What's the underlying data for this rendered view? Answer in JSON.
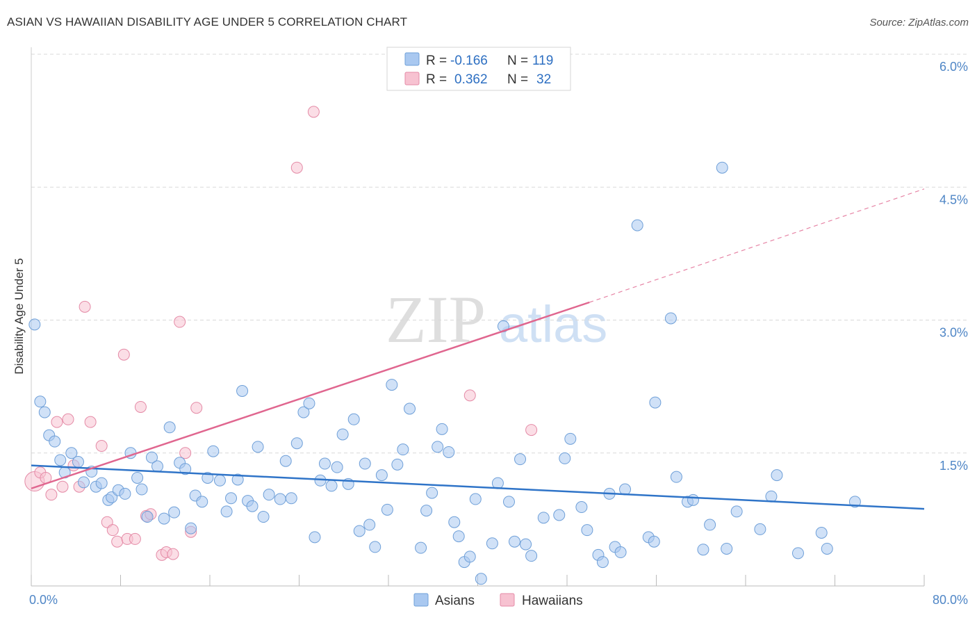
{
  "title": "ASIAN VS HAWAIIAN DISABILITY AGE UNDER 5 CORRELATION CHART",
  "source": "Source: ZipAtlas.com",
  "watermark": {
    "zip": "ZIP",
    "atlas": "atlas"
  },
  "legend_top": [
    {
      "r_label": "R =",
      "r_value": "-0.166",
      "n_label": "N =",
      "n_value": "119"
    },
    {
      "r_label": "R =",
      "r_value": "0.362",
      "n_label": "N =",
      "n_value": "32"
    }
  ],
  "colors": {
    "asian_fill": "#a9c8f0",
    "asian_stroke": "#6e9fd8",
    "asian_line": "#2f74c8",
    "hawaiian_fill": "#f7c2d1",
    "hawaiian_stroke": "#e48aa6",
    "hawaiian_line": "#e0668f",
    "grid": "#d9d9d9",
    "tick": "#4f86c6"
  },
  "chart_data": {
    "type": "scatter",
    "title": "ASIAN VS HAWAIIAN DISABILITY AGE UNDER 5 CORRELATION CHART",
    "xlabel": "",
    "ylabel": "Disability Age Under 5",
    "xlim": [
      0,
      80
    ],
    "ylim": [
      0,
      6.0
    ],
    "x_tick_labels": [
      "0.0%",
      "80.0%"
    ],
    "y_ticks": [
      1.5,
      3.0,
      4.5,
      6.0
    ],
    "y_tick_labels": [
      "1.5%",
      "3.0%",
      "4.5%",
      "6.0%"
    ],
    "grid": true,
    "legend": "bottom-center",
    "series": [
      {
        "name": "Asians",
        "r": -0.166,
        "n": 119,
        "trend": {
          "x": [
            0,
            80
          ],
          "y": [
            1.36,
            0.87
          ],
          "dashed_extension": false
        },
        "points": [
          [
            0.3,
            2.95
          ],
          [
            0.8,
            2.08
          ],
          [
            1.2,
            1.96
          ],
          [
            1.6,
            1.7
          ],
          [
            2.1,
            1.63
          ],
          [
            2.6,
            1.42
          ],
          [
            3.0,
            1.28
          ],
          [
            3.6,
            1.5
          ],
          [
            4.2,
            1.4
          ],
          [
            4.7,
            1.17
          ],
          [
            5.4,
            1.29
          ],
          [
            5.8,
            1.12
          ],
          [
            6.3,
            1.16
          ],
          [
            6.9,
            0.97
          ],
          [
            7.2,
            1.0
          ],
          [
            7.8,
            1.08
          ],
          [
            8.4,
            1.04
          ],
          [
            8.9,
            1.5
          ],
          [
            9.5,
            1.22
          ],
          [
            9.9,
            1.09
          ],
          [
            10.4,
            0.78
          ],
          [
            10.8,
            1.45
          ],
          [
            11.3,
            1.35
          ],
          [
            11.9,
            0.76
          ],
          [
            12.4,
            1.79
          ],
          [
            12.8,
            0.83
          ],
          [
            13.3,
            1.39
          ],
          [
            13.8,
            1.32
          ],
          [
            14.3,
            0.65
          ],
          [
            14.7,
            1.02
          ],
          [
            15.3,
            0.95
          ],
          [
            15.8,
            1.22
          ],
          [
            16.3,
            1.52
          ],
          [
            16.9,
            1.19
          ],
          [
            17.5,
            0.84
          ],
          [
            17.9,
            0.99
          ],
          [
            18.5,
            1.2
          ],
          [
            18.9,
            2.2
          ],
          [
            19.4,
            0.96
          ],
          [
            19.8,
            0.9
          ],
          [
            20.3,
            1.57
          ],
          [
            20.8,
            0.78
          ],
          [
            21.3,
            1.03
          ],
          [
            22.3,
            0.98
          ],
          [
            22.8,
            1.41
          ],
          [
            23.3,
            0.99
          ],
          [
            23.8,
            1.61
          ],
          [
            24.4,
            1.96
          ],
          [
            24.9,
            2.06
          ],
          [
            25.4,
            0.55
          ],
          [
            25.9,
            1.19
          ],
          [
            26.3,
            1.38
          ],
          [
            26.9,
            1.13
          ],
          [
            27.4,
            1.34
          ],
          [
            27.9,
            1.71
          ],
          [
            28.4,
            1.15
          ],
          [
            28.9,
            1.88
          ],
          [
            29.4,
            0.62
          ],
          [
            29.9,
            1.38
          ],
          [
            30.3,
            0.69
          ],
          [
            30.8,
            0.44
          ],
          [
            31.4,
            1.25
          ],
          [
            31.9,
            0.86
          ],
          [
            32.3,
            2.27
          ],
          [
            32.8,
            1.37
          ],
          [
            33.3,
            1.54
          ],
          [
            33.9,
            2.0
          ],
          [
            34.9,
            0.43
          ],
          [
            35.4,
            0.85
          ],
          [
            35.9,
            1.05
          ],
          [
            36.4,
            1.57
          ],
          [
            36.8,
            1.77
          ],
          [
            37.4,
            1.51
          ],
          [
            37.9,
            0.72
          ],
          [
            38.3,
            0.56
          ],
          [
            38.8,
            0.27
          ],
          [
            39.3,
            0.33
          ],
          [
            39.8,
            0.98
          ],
          [
            40.3,
            0.08
          ],
          [
            41.3,
            0.48
          ],
          [
            41.8,
            1.16
          ],
          [
            42.3,
            2.93
          ],
          [
            42.8,
            0.95
          ],
          [
            43.3,
            0.5
          ],
          [
            43.8,
            1.43
          ],
          [
            44.3,
            0.47
          ],
          [
            44.8,
            0.34
          ],
          [
            45.9,
            0.77
          ],
          [
            47.3,
            0.8
          ],
          [
            47.8,
            1.44
          ],
          [
            48.3,
            1.66
          ],
          [
            49.3,
            0.89
          ],
          [
            49.8,
            0.63
          ],
          [
            50.8,
            0.35
          ],
          [
            51.2,
            0.27
          ],
          [
            51.8,
            1.04
          ],
          [
            52.3,
            0.44
          ],
          [
            52.8,
            0.38
          ],
          [
            53.2,
            1.09
          ],
          [
            54.3,
            4.07
          ],
          [
            55.3,
            0.55
          ],
          [
            55.8,
            0.5
          ],
          [
            55.9,
            2.07
          ],
          [
            57.3,
            3.02
          ],
          [
            57.8,
            1.23
          ],
          [
            58.8,
            0.95
          ],
          [
            59.3,
            0.97
          ],
          [
            60.2,
            0.41
          ],
          [
            60.8,
            0.69
          ],
          [
            61.9,
            4.72
          ],
          [
            62.3,
            0.42
          ],
          [
            63.2,
            0.84
          ],
          [
            65.3,
            0.64
          ],
          [
            66.3,
            1.01
          ],
          [
            66.8,
            1.25
          ],
          [
            68.7,
            0.37
          ],
          [
            70.8,
            0.6
          ],
          [
            71.3,
            0.42
          ],
          [
            73.8,
            0.95
          ]
        ]
      },
      {
        "name": "Hawaiians",
        "r": 0.362,
        "n": 32,
        "trend": {
          "x": [
            0,
            50
          ],
          "y": [
            1.1,
            3.2
          ],
          "dashed_extension": {
            "x": [
              50,
              80
            ],
            "y": [
              3.2,
              4.48
            ]
          }
        },
        "points": [
          [
            0.3,
            1.18
          ],
          [
            0.8,
            1.28
          ],
          [
            1.3,
            1.22
          ],
          [
            1.8,
            1.03
          ],
          [
            2.3,
            1.85
          ],
          [
            2.8,
            1.12
          ],
          [
            3.3,
            1.88
          ],
          [
            3.8,
            1.36
          ],
          [
            4.3,
            1.12
          ],
          [
            4.8,
            3.15
          ],
          [
            5.3,
            1.85
          ],
          [
            6.3,
            1.58
          ],
          [
            6.8,
            0.72
          ],
          [
            7.3,
            0.63
          ],
          [
            7.7,
            0.5
          ],
          [
            8.3,
            2.61
          ],
          [
            8.6,
            0.53
          ],
          [
            9.3,
            0.53
          ],
          [
            9.8,
            2.02
          ],
          [
            10.3,
            0.79
          ],
          [
            10.7,
            0.81
          ],
          [
            11.7,
            0.35
          ],
          [
            12.1,
            0.38
          ],
          [
            12.7,
            0.36
          ],
          [
            13.3,
            2.98
          ],
          [
            13.8,
            1.5
          ],
          [
            14.3,
            0.61
          ],
          [
            14.8,
            2.01
          ],
          [
            23.8,
            4.72
          ],
          [
            25.3,
            5.35
          ],
          [
            39.3,
            2.15
          ],
          [
            44.8,
            1.76
          ]
        ]
      }
    ],
    "bottom_legend": [
      "Asians",
      "Hawaiians"
    ]
  }
}
